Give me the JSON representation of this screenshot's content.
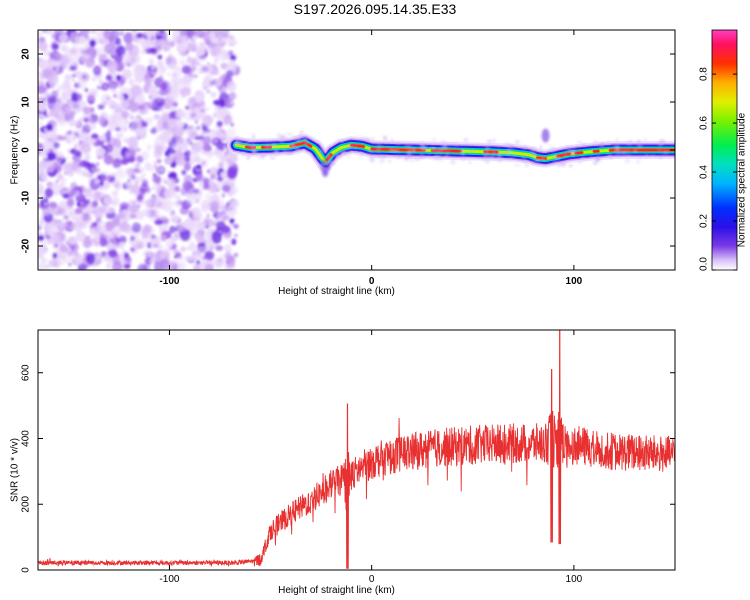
{
  "title": "S197.2026.095.14.35.E33",
  "chart_data": [
    {
      "type": "heatmap",
      "name": "spectrogram",
      "xlabel": "Height of straight line (km)",
      "ylabel": "Frequency (Hz)",
      "xlim": [
        -165,
        150
      ],
      "ylim": [
        -25,
        25
      ],
      "xticks": [
        -100,
        0,
        100
      ],
      "yticks": [
        -20,
        -10,
        0,
        10,
        20
      ],
      "noise_region_x": [
        -165,
        -67
      ],
      "ridge": {
        "x": [
          -67,
          -60,
          -50,
          -40,
          -33,
          -28,
          -23,
          -19,
          -15,
          -10,
          -5,
          0,
          20,
          40,
          60,
          70,
          78,
          82,
          86,
          92,
          98,
          110,
          120,
          150
        ],
        "freq": [
          1.0,
          0.5,
          0.6,
          0.8,
          1.5,
          0.3,
          -2.5,
          -0.5,
          0.5,
          1.0,
          0.8,
          0.2,
          0.0,
          -0.2,
          -0.4,
          -0.6,
          -1.0,
          -1.6,
          -1.8,
          -1.3,
          -0.8,
          -0.3,
          0.0,
          0.0
        ]
      },
      "colorbar": {
        "label": "Normalized spectral amplitude",
        "range": [
          0,
          1
        ],
        "ticks": [
          "0.0",
          "0.2",
          "0.4",
          "0.6",
          "0.8"
        ],
        "tick_values": [
          0.0,
          0.2,
          0.4,
          0.6,
          0.8
        ]
      }
    },
    {
      "type": "line",
      "name": "snr",
      "xlabel": "Height of straight line (km)",
      "ylabel": "SNR (10 * v/v)",
      "xlim": [
        -165,
        150
      ],
      "ylim": [
        0,
        730
      ],
      "xticks": [
        -100,
        0,
        100
      ],
      "yticks": [
        0,
        200,
        400,
        600
      ],
      "color": "#e83030",
      "baseline_points": [
        [
          -165,
          22
        ],
        [
          -67,
          22
        ],
        [
          -55,
          30
        ],
        [
          -50,
          120
        ],
        [
          -40,
          170
        ],
        [
          -30,
          210
        ],
        [
          -20,
          260
        ],
        [
          -10,
          290
        ],
        [
          0,
          330
        ],
        [
          10,
          350
        ],
        [
          20,
          360
        ],
        [
          30,
          370
        ],
        [
          50,
          380
        ],
        [
          70,
          385
        ],
        [
          85,
          385
        ],
        [
          100,
          380
        ],
        [
          120,
          360
        ],
        [
          150,
          350
        ]
      ],
      "spikes": [
        {
          "x": -12,
          "high": 505,
          "low": 5
        },
        {
          "x": 89,
          "high": 610,
          "low": 85
        },
        {
          "x": 93,
          "high": 730,
          "low": 80
        }
      ]
    }
  ]
}
